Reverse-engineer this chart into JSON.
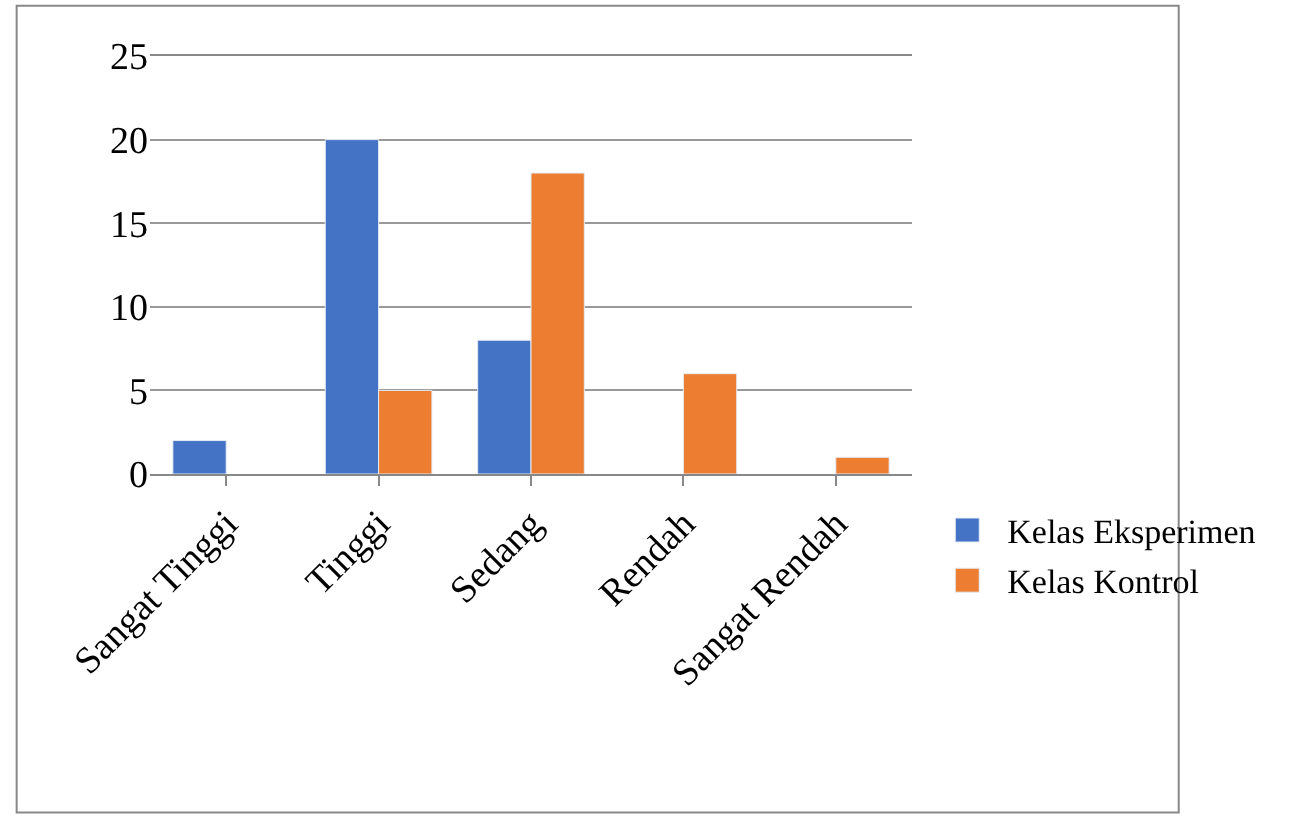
{
  "chart_data": {
    "type": "bar",
    "categories": [
      "Sangat Tinggi",
      "Tinggi",
      "Sedang",
      "Rendah",
      "Sangat Rendah"
    ],
    "series": [
      {
        "name": "Kelas Eksperimen",
        "color": "#4472c4",
        "values": [
          2,
          20,
          8,
          null,
          null
        ]
      },
      {
        "name": "Kelas Kontrol",
        "color": "#ed7d31",
        "values": [
          null,
          5,
          18,
          6,
          1
        ]
      }
    ],
    "ylim": [
      0,
      25
    ],
    "yticks": [
      0,
      5,
      10,
      15,
      20,
      25
    ],
    "grid": "y",
    "legend": "right"
  }
}
